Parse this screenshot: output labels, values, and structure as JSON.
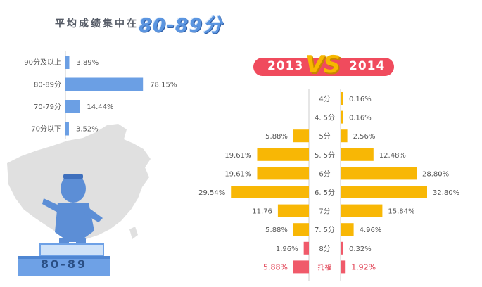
{
  "header": {
    "title_prefix": "平均成绩集中在",
    "title_highlight": "80-89分"
  },
  "badge": {
    "label": "80-89"
  },
  "comparison": {
    "left_year": "2013",
    "vs_label": "VS",
    "right_year": "2014"
  },
  "colors": {
    "blue_bar": "#6b9fe4",
    "yellow_bar": "#f8b705",
    "red_bar": "#f05a6a",
    "red_text": "#e03b4e",
    "axis": "#cccccc",
    "map": "#dcdcdc",
    "mascot": "#5c8ed6"
  },
  "chart_data": [
    {
      "type": "bar",
      "orientation": "horizontal",
      "title": "平均成绩集中在80-89分",
      "categories": [
        "90分及以上",
        "80-89分",
        "70-79分",
        "70分以下"
      ],
      "values": [
        3.89,
        78.15,
        14.44,
        3.52
      ],
      "value_labels": [
        "3.89%",
        "78.15%",
        "14.44%",
        "3.52%"
      ],
      "xlim": [
        0,
        100
      ],
      "grid": false
    },
    {
      "type": "bar",
      "orientation": "horizontal",
      "layout": "butterfly",
      "categories": [
        "4分",
        "4.5分",
        "5分",
        "5.5分",
        "6分",
        "6.5分",
        "7分",
        "7.5分",
        "8分",
        "托福"
      ],
      "category_labels": [
        "4分",
        "4. 5分",
        "5分",
        "5. 5分",
        "6分",
        "6. 5分",
        "7分",
        "7. 5分",
        "8分",
        "托福"
      ],
      "series": [
        {
          "name": "2013",
          "side": "left",
          "values": [
            null,
            null,
            5.88,
            19.61,
            19.61,
            29.54,
            11.76,
            5.88,
            1.96,
            5.88
          ],
          "value_labels": [
            "",
            "",
            "5.88%",
            "19.61%",
            "19.61%",
            "29.54%",
            "11.76",
            "5.88%",
            "1.96%",
            "5.88%"
          ]
        },
        {
          "name": "2014",
          "side": "right",
          "values": [
            0.16,
            0.16,
            2.56,
            12.48,
            28.8,
            32.8,
            15.84,
            4.96,
            0.32,
            1.92
          ],
          "value_labels": [
            "0.16%",
            "0.16%",
            "2.56%",
            "12.48%",
            "28.80%",
            "32.80%",
            "15.84%",
            "4.96%",
            "0.32%",
            "1.92%"
          ]
        }
      ],
      "highlight_category": "托福",
      "grid": false
    }
  ]
}
